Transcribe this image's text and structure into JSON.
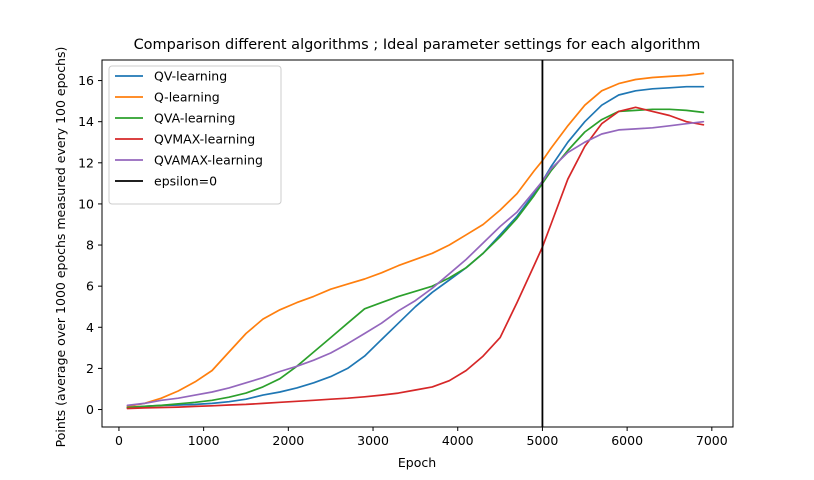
{
  "chart_data": {
    "type": "line",
    "title": "Comparison different algorithms ; Ideal parameter settings for each algorithm",
    "xlabel": "Epoch",
    "ylabel": "Points (average over 1000 epochs measured every 100 epochs)",
    "xlim": [
      -200,
      7250
    ],
    "ylim": [
      -0.85,
      17.0
    ],
    "xticks": [
      0,
      1000,
      2000,
      3000,
      4000,
      5000,
      6000,
      7000
    ],
    "yticks": [
      0,
      2,
      4,
      6,
      8,
      10,
      12,
      14,
      16
    ],
    "grid": false,
    "legend_position": "top-left",
    "x": [
      100,
      300,
      500,
      700,
      900,
      1100,
      1300,
      1500,
      1700,
      1900,
      2100,
      2300,
      2500,
      2700,
      2900,
      3100,
      3300,
      3500,
      3700,
      3900,
      4100,
      4300,
      4500,
      4700,
      4900,
      5000,
      5100,
      5300,
      5500,
      5700,
      5900,
      6100,
      6300,
      6500,
      6700,
      6900
    ],
    "series": [
      {
        "name": "QV-learning",
        "color": "#1f77b4",
        "values": [
          0.1,
          0.15,
          0.2,
          0.22,
          0.25,
          0.3,
          0.38,
          0.5,
          0.7,
          0.85,
          1.05,
          1.3,
          1.6,
          2.0,
          2.6,
          3.4,
          4.2,
          5.0,
          5.7,
          6.3,
          6.9,
          7.6,
          8.5,
          9.4,
          10.5,
          11.1,
          11.8,
          13.0,
          14.0,
          14.8,
          15.3,
          15.5,
          15.6,
          15.65,
          15.7,
          15.7
        ]
      },
      {
        "name": "Q-learning",
        "color": "#ff7f0e",
        "values": [
          0.15,
          0.3,
          0.55,
          0.9,
          1.35,
          1.9,
          2.8,
          3.7,
          4.4,
          4.85,
          5.2,
          5.5,
          5.85,
          6.1,
          6.35,
          6.65,
          7.0,
          7.3,
          7.6,
          8.0,
          8.5,
          9.0,
          9.7,
          10.5,
          11.6,
          12.1,
          12.7,
          13.8,
          14.8,
          15.5,
          15.85,
          16.05,
          16.15,
          16.2,
          16.25,
          16.35
        ]
      },
      {
        "name": "QVA-learning",
        "color": "#2ca02c",
        "values": [
          0.1,
          0.15,
          0.2,
          0.28,
          0.35,
          0.45,
          0.6,
          0.8,
          1.1,
          1.5,
          2.1,
          2.8,
          3.5,
          4.2,
          4.9,
          5.2,
          5.5,
          5.75,
          6.0,
          6.4,
          6.9,
          7.6,
          8.4,
          9.3,
          10.4,
          11.0,
          11.6,
          12.6,
          13.5,
          14.1,
          14.5,
          14.55,
          14.6,
          14.6,
          14.55,
          14.45
        ]
      },
      {
        "name": "QVMAX-learning",
        "color": "#d62728",
        "values": [
          0.05,
          0.08,
          0.1,
          0.12,
          0.15,
          0.18,
          0.22,
          0.25,
          0.3,
          0.35,
          0.4,
          0.45,
          0.5,
          0.55,
          0.62,
          0.7,
          0.8,
          0.95,
          1.1,
          1.4,
          1.9,
          2.6,
          3.5,
          5.2,
          7.0,
          7.9,
          9.0,
          11.2,
          12.8,
          13.9,
          14.5,
          14.7,
          14.5,
          14.3,
          14.0,
          13.85
        ]
      },
      {
        "name": "QVAMAX-learning",
        "color": "#9467bd",
        "values": [
          0.2,
          0.3,
          0.45,
          0.55,
          0.7,
          0.85,
          1.05,
          1.3,
          1.55,
          1.85,
          2.1,
          2.4,
          2.75,
          3.2,
          3.7,
          4.2,
          4.8,
          5.3,
          5.9,
          6.6,
          7.3,
          8.1,
          8.9,
          9.6,
          10.6,
          11.1,
          11.7,
          12.5,
          13.0,
          13.4,
          13.6,
          13.65,
          13.7,
          13.8,
          13.9,
          14.0
        ]
      }
    ],
    "vline": {
      "name": "epsilon=0",
      "x": 5000,
      "color": "#000000"
    }
  }
}
